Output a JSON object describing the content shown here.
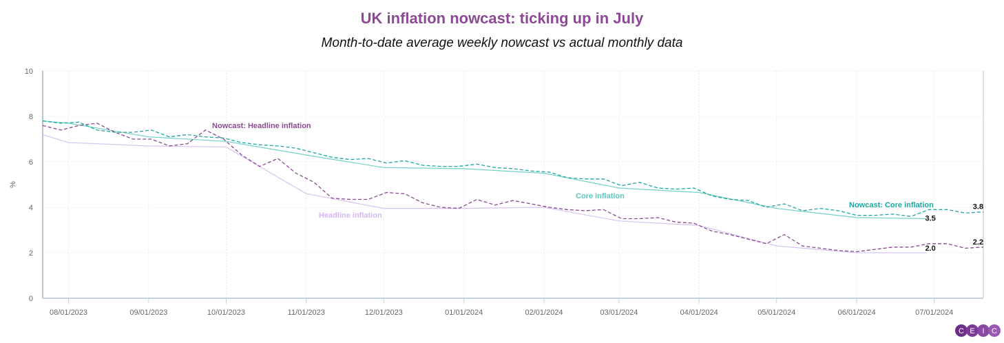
{
  "chart_data": {
    "type": "line",
    "title": "UK inflation nowcast: ticking up in July",
    "subtitle": "Month-to-date average weekly nowcast vs actual monthly data",
    "ylabel": "%",
    "ylim": [
      0,
      10
    ],
    "yticks": [
      "0",
      "2",
      "4",
      "6",
      "8",
      "10"
    ],
    "xlim": [
      "2023-07-22",
      "2024-07-20"
    ],
    "xticks": [
      {
        "date": "2023-08-01",
        "label": "08/01/2023"
      },
      {
        "date": "2023-09-01",
        "label": "09/01/2023"
      },
      {
        "date": "2023-10-01",
        "label": "10/01/2023"
      },
      {
        "date": "2023-11-01",
        "label": "11/01/2023"
      },
      {
        "date": "2023-12-01",
        "label": "12/01/2023"
      },
      {
        "date": "2024-01-01",
        "label": "01/01/2024"
      },
      {
        "date": "2024-02-01",
        "label": "02/01/2024"
      },
      {
        "date": "2024-03-01",
        "label": "03/01/2024"
      },
      {
        "date": "2024-04-01",
        "label": "04/01/2024"
      },
      {
        "date": "2024-05-01",
        "label": "05/01/2024"
      },
      {
        "date": "2024-06-01",
        "label": "06/01/2024"
      },
      {
        "date": "2024-07-01",
        "label": "07/01/2024"
      }
    ],
    "grid": true,
    "monthly_dates": [
      "2023-07-22",
      "2023-08-01",
      "2023-09-01",
      "2023-10-01",
      "2023-11-01",
      "2023-12-01",
      "2024-01-01",
      "2024-02-01",
      "2024-03-01",
      "2024-04-01",
      "2024-05-01",
      "2024-06-01",
      "2024-06-28"
    ],
    "weekly_dates": [
      "2023-07-22",
      "2023-07-29",
      "2023-08-05",
      "2023-08-12",
      "2023-08-19",
      "2023-08-26",
      "2023-09-02",
      "2023-09-09",
      "2023-09-16",
      "2023-09-23",
      "2023-09-30",
      "2023-10-07",
      "2023-10-14",
      "2023-10-21",
      "2023-10-28",
      "2023-11-04",
      "2023-11-11",
      "2023-11-18",
      "2023-11-25",
      "2023-12-02",
      "2023-12-09",
      "2023-12-16",
      "2023-12-23",
      "2023-12-30",
      "2024-01-06",
      "2024-01-13",
      "2024-01-20",
      "2024-01-27",
      "2024-02-03",
      "2024-02-10",
      "2024-02-17",
      "2024-02-24",
      "2024-03-02",
      "2024-03-09",
      "2024-03-16",
      "2024-03-23",
      "2024-03-30",
      "2024-04-06",
      "2024-04-13",
      "2024-04-20",
      "2024-04-27",
      "2024-05-04",
      "2024-05-11",
      "2024-05-18",
      "2024-05-25",
      "2024-06-01",
      "2024-06-08",
      "2024-06-15",
      "2024-06-22",
      "2024-06-29",
      "2024-07-06",
      "2024-07-13",
      "2024-07-20"
    ],
    "series": [
      {
        "name": "Headline inflation",
        "kind": "monthly",
        "style": "solid",
        "color": "#d8c3f0",
        "values": [
          7.2,
          6.85,
          6.7,
          6.65,
          4.6,
          3.95,
          3.95,
          4.0,
          3.4,
          3.2,
          2.3,
          2.0,
          2.0
        ],
        "end_label": "2.0"
      },
      {
        "name": "Core inflation",
        "kind": "monthly",
        "style": "solid",
        "color": "#72d0c7",
        "values": [
          7.8,
          7.7,
          7.1,
          6.9,
          6.3,
          5.75,
          5.7,
          5.5,
          4.85,
          4.65,
          3.95,
          3.55,
          3.5
        ],
        "end_label": "3.5"
      },
      {
        "name": "Nowcast: Headline inflation",
        "kind": "weekly",
        "style": "dashed",
        "color": "#8a4a8f",
        "values": [
          7.6,
          7.4,
          7.6,
          7.7,
          7.3,
          7.0,
          7.0,
          6.7,
          6.8,
          7.4,
          7.0,
          6.3,
          5.8,
          6.15,
          5.5,
          5.1,
          4.4,
          4.35,
          4.35,
          4.65,
          4.6,
          4.2,
          4.0,
          3.95,
          4.35,
          4.1,
          4.3,
          4.15,
          4.0,
          3.9,
          3.85,
          3.9,
          3.5,
          3.5,
          3.55,
          3.35,
          3.3,
          2.95,
          2.8,
          2.6,
          2.4,
          2.8,
          2.3,
          2.2,
          2.1,
          2.05,
          2.15,
          2.25,
          2.25,
          2.4,
          2.4,
          2.2,
          2.25
        ],
        "end_label": "2.2"
      },
      {
        "name": "Nowcast: Core inflation",
        "kind": "weekly",
        "style": "dashed",
        "color": "#1aa7a1",
        "values": [
          7.8,
          7.7,
          7.75,
          7.4,
          7.3,
          7.3,
          7.4,
          7.1,
          7.2,
          7.1,
          7.05,
          6.85,
          6.75,
          6.7,
          6.6,
          6.4,
          6.2,
          6.1,
          6.15,
          5.95,
          6.05,
          5.85,
          5.8,
          5.8,
          5.9,
          5.75,
          5.7,
          5.6,
          5.55,
          5.3,
          5.25,
          5.25,
          4.95,
          5.1,
          4.85,
          4.8,
          4.85,
          4.5,
          4.35,
          4.3,
          4.0,
          4.15,
          3.85,
          3.95,
          3.85,
          3.65,
          3.65,
          3.7,
          3.6,
          3.9,
          3.9,
          3.75,
          3.8
        ],
        "end_label": "3.8"
      }
    ]
  },
  "logo": {
    "text": "CEIC",
    "color": "#5a2a7a"
  }
}
